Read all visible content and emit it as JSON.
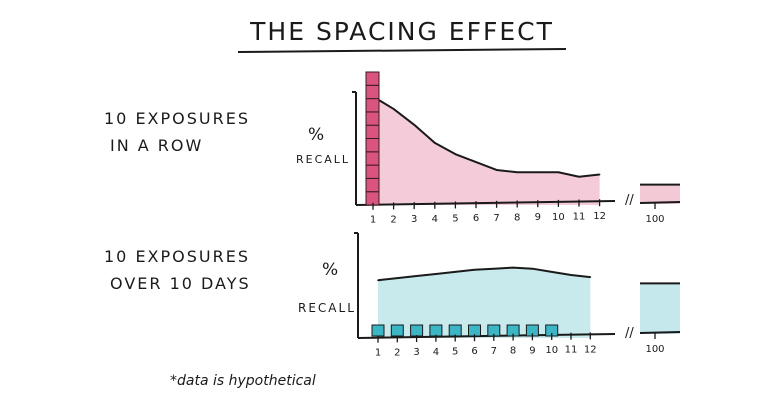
{
  "title": "THE SPACING EFFECT",
  "footnote": "*data is hypothetical",
  "colors": {
    "massed": "#d9557f",
    "massed_fill": "#f2c3d2",
    "spaced": "#3cb6c4",
    "spaced_fill": "#bfe6ea",
    "ink": "#1a1a1a"
  },
  "chart_data": [
    {
      "type": "area",
      "label_lines": [
        "10 EXPOSURES",
        "IN A ROW"
      ],
      "ylabel_lines": [
        "%",
        "RECALL"
      ],
      "x_ticks": [
        "1",
        "2",
        "3",
        "4",
        "5",
        "6",
        "7",
        "8",
        "9",
        "10",
        "11",
        "12",
        "100"
      ],
      "axis_break": "//",
      "exposures": {
        "day": 1,
        "count": 10
      },
      "recall": {
        "x": [
          1,
          2,
          3,
          4,
          5,
          6,
          7,
          8,
          9,
          10,
          11,
          12,
          100
        ],
        "y": [
          96,
          85,
          71,
          55,
          45,
          38,
          31,
          29,
          29,
          29,
          25,
          27,
          18
        ]
      },
      "ylim": [
        0,
        100
      ]
    },
    {
      "type": "area",
      "label_lines": [
        "10 EXPOSURES",
        "OVER 10 DAYS"
      ],
      "ylabel_lines": [
        "%",
        "RECALL"
      ],
      "x_ticks": [
        "1",
        "2",
        "3",
        "4",
        "5",
        "6",
        "7",
        "8",
        "9",
        "10",
        "11",
        "12",
        "100"
      ],
      "axis_break": "//",
      "exposures": {
        "days": [
          1,
          2,
          3,
          4,
          5,
          6,
          7,
          8,
          9,
          10
        ],
        "count": 10
      },
      "recall": {
        "x": [
          1,
          2,
          3,
          4,
          5,
          6,
          7,
          8,
          9,
          10,
          11,
          12,
          100
        ],
        "y": [
          55,
          57,
          59,
          61,
          63,
          65,
          66,
          67,
          66,
          63,
          60,
          58,
          52
        ]
      },
      "ylim": [
        0,
        100
      ]
    }
  ]
}
